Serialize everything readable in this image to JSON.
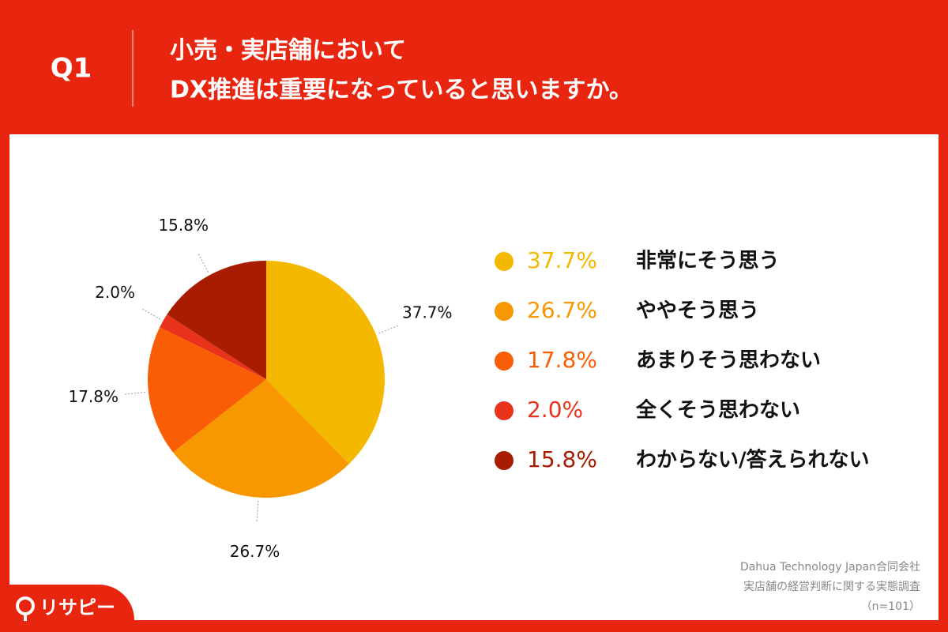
{
  "header": {
    "question": "Q1",
    "title_lines": [
      "小売・実店舗において",
      "DX推進は重要になっていると思いますか。"
    ]
  },
  "chart_data": {
    "type": "pie",
    "categories": [
      "非常にそう思う",
      "ややそう思う",
      "あまりそう思わない",
      "全くそう思わない",
      "わからない/答えられない"
    ],
    "values": [
      37.7,
      26.7,
      17.8,
      2.0,
      15.8
    ],
    "value_labels": [
      "37.7%",
      "26.7%",
      "17.8%",
      "2.0%",
      "15.8%"
    ],
    "colors": [
      "#f5b800",
      "#f79800",
      "#f95d05",
      "#e8321a",
      "#a81c00"
    ]
  },
  "source": [
    "Dahua Technology Japan合同会社",
    "実店舗の経営判断に関する実態調査",
    "（n=101）"
  ],
  "logo": "リサピー"
}
